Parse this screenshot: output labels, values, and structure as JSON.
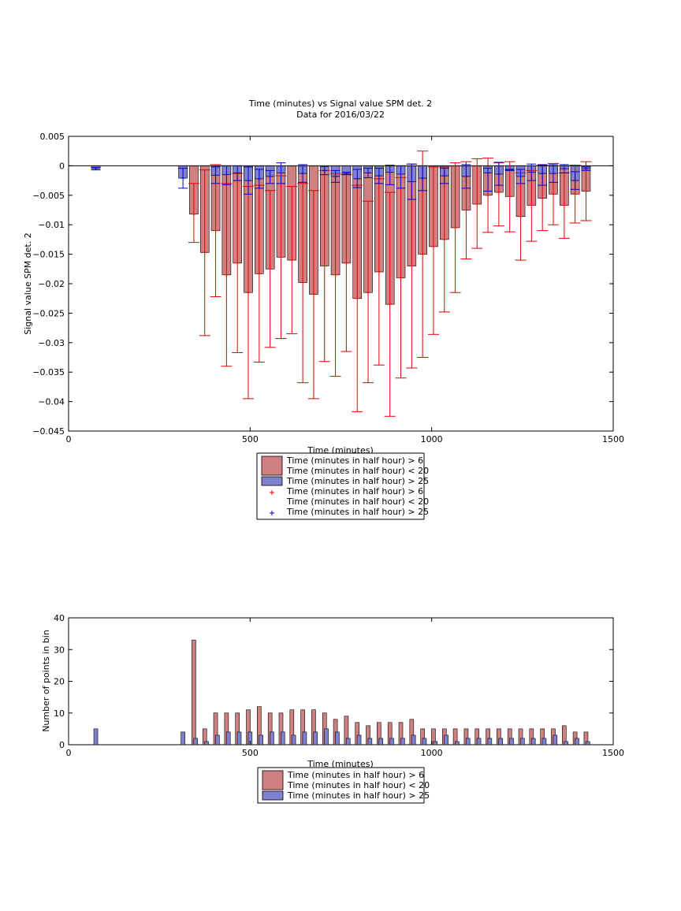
{
  "chart_data": [
    {
      "type": "bar",
      "title": "Time (minutes) vs Signal value SPM det. 2",
      "subtitle": "Data for 2016/03/22",
      "xlabel": "Time (minutes)",
      "ylabel": "Signal value SPM det. 2",
      "xlim": [
        0,
        1500
      ],
      "ylim": [
        -0.045,
        0.005
      ],
      "xticks": [
        0,
        500,
        1000,
        1500
      ],
      "xtick_labels": [
        "0",
        "500",
        "1000",
        "1500"
      ],
      "yticks": [
        0.005,
        0,
        -0.005,
        -0.01,
        -0.015,
        -0.02,
        -0.025,
        -0.03,
        -0.035,
        -0.04,
        -0.045
      ],
      "ytick_labels": [
        "0.005",
        "0",
        "−0.005",
        "−0.01",
        "−0.015",
        "−0.02",
        "−0.025",
        "−0.03",
        "−0.035",
        "−0.04",
        "−0.045"
      ],
      "legend_position": "below",
      "legend": [
        {
          "kind": "bar",
          "color": "#d08080",
          "lines": [
            "Time (minutes in half hour) > 6",
            "Time (minutes in half hour) < 20"
          ]
        },
        {
          "kind": "bar",
          "color": "#8080d0",
          "lines": [
            "Time (minutes in half hour) > 25"
          ]
        },
        {
          "kind": "marker",
          "color": "#e00000",
          "lines": [
            "Time (minutes in half hour) > 6",
            "Time (minutes in half hour) < 20"
          ]
        },
        {
          "kind": "marker",
          "color": "#0000cc",
          "lines": [
            "Time (minutes in half hour) > 25"
          ]
        }
      ],
      "series": [
        {
          "color": "#d08080",
          "error_color": "#e00000",
          "x": [
            345,
            375,
            405,
            435,
            465,
            495,
            525,
            555,
            585,
            615,
            645,
            675,
            705,
            735,
            765,
            795,
            825,
            855,
            885,
            915,
            945,
            975,
            1005,
            1035,
            1065,
            1095,
            1125,
            1155,
            1185,
            1215,
            1245,
            1275,
            1305,
            1335,
            1365,
            1395,
            1425
          ],
          "values": [
            -0.0082,
            -0.0147,
            -0.011,
            -0.0185,
            -0.0165,
            -0.0215,
            -0.0183,
            -0.0175,
            -0.0155,
            -0.016,
            -0.0198,
            -0.0218,
            -0.017,
            -0.0185,
            -0.0165,
            -0.0225,
            -0.0215,
            -0.018,
            -0.0235,
            -0.019,
            -0.017,
            -0.015,
            -0.0137,
            -0.0125,
            -0.0105,
            -0.0075,
            -0.0065,
            -0.005,
            -0.0045,
            -0.0052,
            -0.0086,
            -0.0067,
            -0.0055,
            -0.0048,
            -0.0067,
            -0.0048,
            -0.0043
          ],
          "err_low": [
            -0.013,
            -0.0288,
            -0.0222,
            -0.034,
            -0.0317,
            -0.0395,
            -0.0333,
            -0.0308,
            -0.0293,
            -0.0285,
            -0.0368,
            -0.0395,
            -0.0332,
            -0.0357,
            -0.0315,
            -0.0417,
            -0.0368,
            -0.0338,
            -0.0425,
            -0.036,
            -0.0343,
            -0.0325,
            -0.0286,
            -0.0248,
            -0.0215,
            -0.0158,
            -0.014,
            -0.0113,
            -0.0102,
            -0.0112,
            -0.016,
            -0.0128,
            -0.011,
            -0.01,
            -0.0123,
            -0.0097,
            -0.0093
          ],
          "err_high": [
            -0.003,
            -0.0007,
            0.0002,
            -0.003,
            -0.0013,
            -0.0035,
            -0.0033,
            -0.0042,
            -0.0017,
            -0.0035,
            -0.003,
            -0.0042,
            -0.0008,
            -0.0013,
            -0.0015,
            -0.0033,
            -0.006,
            -0.0022,
            -0.0045,
            -0.002,
            0.0003,
            0.0025,
            -0.0002,
            -0.0002,
            0.0005,
            0.0007,
            0.0012,
            0.0013,
            0.0005,
            0.0007,
            -0.0012,
            -0.0008,
            0.0001,
            0.0004,
            -0.0012,
            0.0001,
            0.0007
          ]
        },
        {
          "color": "#8080d0",
          "error_color": "#0000cc",
          "x": [
            75,
            315,
            405,
            435,
            465,
            495,
            525,
            555,
            585,
            645,
            705,
            735,
            765,
            795,
            825,
            855,
            885,
            915,
            945,
            975,
            1035,
            1095,
            1155,
            1185,
            1215,
            1245,
            1275,
            1305,
            1335,
            1365,
            1395,
            1425
          ],
          "values": [
            -0.0005,
            -0.0021,
            -0.0016,
            -0.0015,
            -0.0012,
            -0.0025,
            -0.0022,
            -0.0018,
            -0.0012,
            -0.0013,
            -0.0008,
            -0.0018,
            -0.0013,
            -0.0022,
            -0.0012,
            -0.0017,
            -0.0011,
            -0.0014,
            -0.0027,
            -0.0021,
            -0.0017,
            -0.0018,
            -0.0012,
            -0.0014,
            -0.0007,
            -0.0018,
            -0.0011,
            -0.0013,
            -0.0013,
            -0.0005,
            -0.0025,
            -0.0005
          ],
          "err_low": [
            -0.0007,
            -0.0038,
            -0.003,
            -0.0032,
            -0.0025,
            -0.0048,
            -0.0038,
            -0.003,
            -0.003,
            -0.0028,
            -0.0015,
            -0.0028,
            -0.0015,
            -0.0037,
            -0.002,
            -0.003,
            -0.0032,
            -0.0038,
            -0.0057,
            -0.0042,
            -0.003,
            -0.0038,
            -0.0043,
            -0.0033,
            -0.0008,
            -0.003,
            -0.0025,
            -0.0033,
            -0.0028,
            -0.0012,
            -0.004,
            -0.0008
          ],
          "err_high": [
            -0.0003,
            -0.0004,
            -0.0002,
            0.0,
            0.0,
            -0.0002,
            -0.0006,
            -0.0008,
            0.0005,
            0.0002,
            -0.0001,
            -0.0008,
            -0.0011,
            -0.0006,
            -0.0004,
            -0.0004,
            0.0001,
            0.0,
            0.0003,
            0.0,
            -0.0004,
            0.0002,
            -0.0004,
            0.0006,
            -0.0006,
            -0.0006,
            0.0003,
            0.0002,
            0.0002,
            0.0002,
            -0.001,
            -0.0002
          ]
        }
      ]
    },
    {
      "type": "bar",
      "title": "",
      "xlabel": "Time (minutes)",
      "ylabel": "Number of points in bin",
      "xlim": [
        0,
        1500
      ],
      "ylim": [
        0,
        40
      ],
      "xticks": [
        0,
        500,
        1000,
        1500
      ],
      "xtick_labels": [
        "0",
        "500",
        "1000",
        "1500"
      ],
      "yticks": [
        0,
        10,
        20,
        30,
        40
      ],
      "ytick_labels": [
        "0",
        "10",
        "20",
        "30",
        "40"
      ],
      "legend_position": "below",
      "legend": [
        {
          "kind": "bar",
          "color": "#d08080",
          "lines": [
            "Time (minutes in half hour) > 6",
            "Time (minutes in half hour) < 20"
          ]
        },
        {
          "kind": "bar",
          "color": "#8080d0",
          "lines": [
            "Time (minutes in half hour) > 25"
          ]
        }
      ],
      "series": [
        {
          "color": "#d08080",
          "x": [
            345,
            375,
            405,
            435,
            465,
            495,
            525,
            555,
            585,
            615,
            645,
            675,
            705,
            735,
            765,
            795,
            825,
            855,
            885,
            915,
            945,
            975,
            1005,
            1035,
            1065,
            1095,
            1125,
            1155,
            1185,
            1215,
            1245,
            1275,
            1305,
            1335,
            1365,
            1395,
            1425
          ],
          "values": [
            33,
            5,
            10,
            10,
            10,
            11,
            12,
            10,
            10,
            11,
            11,
            11,
            10,
            8,
            9,
            7,
            6,
            7,
            7,
            7,
            8,
            5,
            5,
            5,
            5,
            5,
            5,
            5,
            5,
            5,
            5,
            5,
            5,
            5,
            6,
            4,
            4
          ]
        },
        {
          "color": "#8080d0",
          "x": [
            75,
            315,
            350,
            380,
            410,
            440,
            470,
            500,
            530,
            560,
            590,
            620,
            650,
            680,
            710,
            740,
            770,
            800,
            830,
            860,
            890,
            920,
            950,
            980,
            1010,
            1040,
            1070,
            1100,
            1130,
            1160,
            1190,
            1220,
            1250,
            1280,
            1310,
            1340,
            1370,
            1400,
            1430
          ],
          "values": [
            5,
            4,
            2,
            1,
            3,
            4,
            4,
            4,
            3,
            4,
            4,
            3,
            4,
            4,
            5,
            4,
            2,
            3,
            2,
            2,
            2,
            2,
            3,
            2,
            1,
            3,
            1,
            2,
            2,
            2,
            2,
            2,
            2,
            2,
            2,
            3,
            1,
            2,
            1
          ]
        }
      ]
    }
  ]
}
